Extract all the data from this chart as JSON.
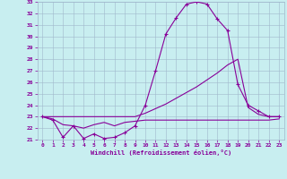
{
  "xlabel": "Windchill (Refroidissement éolien,°C)",
  "xlim": [
    -0.5,
    23.5
  ],
  "ylim": [
    21,
    33
  ],
  "yticks": [
    21,
    22,
    23,
    24,
    25,
    26,
    27,
    28,
    29,
    30,
    31,
    32,
    33
  ],
  "xticks": [
    0,
    1,
    2,
    3,
    4,
    5,
    6,
    7,
    8,
    9,
    10,
    11,
    12,
    13,
    14,
    15,
    16,
    17,
    18,
    19,
    20,
    21,
    22,
    23
  ],
  "background_color": "#c8eef0",
  "grid_color": "#a0b8cc",
  "line_color": "#880099",
  "line1_x": [
    0,
    1,
    2,
    3,
    4,
    5,
    6,
    7,
    8,
    9,
    10,
    11,
    12,
    13,
    14,
    15,
    16,
    17,
    18,
    19,
    20,
    21,
    22,
    23
  ],
  "line1_y": [
    23.0,
    22.7,
    21.2,
    22.2,
    21.1,
    21.5,
    21.1,
    21.2,
    21.6,
    22.2,
    24.0,
    27.0,
    30.2,
    31.6,
    32.8,
    33.0,
    32.8,
    31.5,
    30.5,
    25.8,
    24.0,
    23.5,
    23.0,
    23.0
  ],
  "line2_x": [
    0,
    1,
    2,
    3,
    4,
    5,
    6,
    7,
    8,
    9,
    10,
    11,
    12,
    13,
    14,
    15,
    16,
    17,
    18,
    19,
    20,
    21,
    22,
    23
  ],
  "line2_y": [
    23.0,
    23.0,
    23.0,
    23.0,
    23.0,
    23.0,
    23.0,
    23.0,
    23.0,
    23.0,
    23.3,
    23.7,
    24.1,
    24.6,
    25.1,
    25.6,
    26.2,
    26.8,
    27.5,
    28.0,
    23.8,
    23.2,
    23.0,
    23.0
  ],
  "line3_x": [
    0,
    1,
    2,
    3,
    4,
    5,
    6,
    7,
    8,
    9,
    10,
    11,
    12,
    13,
    14,
    15,
    16,
    17,
    18,
    19,
    20,
    21,
    22,
    23
  ],
  "line3_y": [
    23.0,
    22.8,
    22.3,
    22.2,
    22.0,
    22.3,
    22.5,
    22.2,
    22.5,
    22.6,
    22.7,
    22.7,
    22.7,
    22.7,
    22.7,
    22.7,
    22.7,
    22.7,
    22.7,
    22.7,
    22.7,
    22.7,
    22.7,
    22.8
  ]
}
